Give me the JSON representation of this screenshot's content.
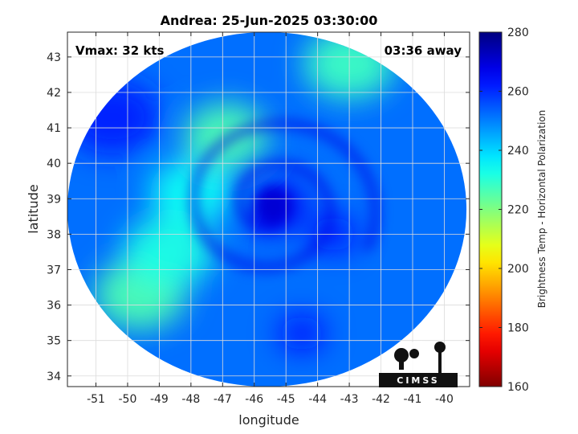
{
  "chart_data": {
    "type": "heatmap",
    "title": "Andrea: 25-Jun-2025 03:30:00",
    "xlabel": "longitude",
    "ylabel": "latitude",
    "xlim": [
      -51.9,
      -39.2
    ],
    "ylim": [
      33.7,
      43.7
    ],
    "xticks": [
      -51,
      -50,
      -49,
      -48,
      -47,
      -46,
      -45,
      -44,
      -43,
      -42,
      -41,
      -40
    ],
    "yticks": [
      34,
      35,
      36,
      37,
      38,
      39,
      40,
      41,
      42,
      43
    ],
    "grid": true,
    "colorbar": {
      "label": "Brightness Temp - Horizontal Polarization",
      "range": [
        160,
        280
      ],
      "ticks": [
        160,
        180,
        200,
        220,
        240,
        260,
        280
      ],
      "colormap": "jet"
    },
    "annotations": {
      "left": "Vmax: 32 kts",
      "right": "03:36 away"
    },
    "storm_center": {
      "lon": -45.4,
      "lat": 38.8
    },
    "swath": {
      "center_lon": -45.6,
      "center_lat": 38.7,
      "radius_lon": 6.3,
      "radius_lat": 5.0
    },
    "field_features": [
      {
        "kind": "background",
        "value": 252
      },
      {
        "kind": "eye-core",
        "lon": -45.4,
        "lat": 38.8,
        "value": 266
      },
      {
        "kind": "warm-band-arc",
        "lon": -46.9,
        "lat": 40.8,
        "value": 226
      },
      {
        "kind": "warm-band-arc",
        "lon": -48.0,
        "lat": 39.2,
        "value": 234
      },
      {
        "kind": "warm-patch",
        "lon": -43.0,
        "lat": 42.8,
        "value": 228
      },
      {
        "kind": "warm-patch",
        "lon": -49.6,
        "lat": 36.3,
        "value": 226
      },
      {
        "kind": "warm-patch",
        "lon": -48.7,
        "lat": 37.5,
        "value": 232
      },
      {
        "kind": "cold-patch",
        "lon": -50.5,
        "lat": 41.3,
        "value": 262
      },
      {
        "kind": "rainband-arc",
        "lon": -43.5,
        "lat": 38.0,
        "value": 264
      },
      {
        "kind": "rainband-arc",
        "lon": -44.5,
        "lat": 35.2,
        "value": 264
      }
    ]
  },
  "logo": {
    "text": "CIMSS"
  },
  "colors": {
    "gridline": "#dcdcdc",
    "axis": "#262626"
  }
}
